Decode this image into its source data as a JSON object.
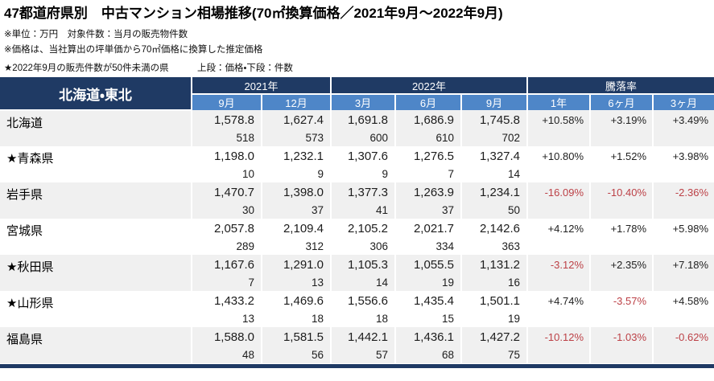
{
  "page": {
    "title": "47都道府県別　中古マンション相場推移(70㎡換算価格／2021年9月～2022年9月)",
    "notes": [
      "※単位：万円　対象件数：当月の販売物件数",
      "※価格は、当社算出の坪単価から70㎡価格に換算した推定価格"
    ],
    "note_star": "★2022年9月の販売件数が50件未満の県",
    "note_legend": "上段：価格・下段：件数"
  },
  "colors": {
    "header_navy": "#1F3A64",
    "header_blue": "#4E86C8",
    "stripe_gray": "#F0F0F0",
    "negative_red": "#BC4046"
  },
  "table": {
    "region": "北海道・東北",
    "year_groups": [
      {
        "label": "2021年",
        "span": 2
      },
      {
        "label": "2022年",
        "span": 3
      },
      {
        "label": "騰落率",
        "span": 3
      }
    ],
    "periods": [
      "9月",
      "12月",
      "3月",
      "6月",
      "9月",
      "1年",
      "6ヶ月",
      "3ヶ月"
    ],
    "rows": [
      {
        "name": "北海道",
        "prices": [
          "1,578.8",
          "1,627.4",
          "1,691.8",
          "1,686.9",
          "1,745.8"
        ],
        "counts": [
          "518",
          "573",
          "600",
          "610",
          "702"
        ],
        "rates": [
          "+10.58%",
          "+3.19%",
          "+3.49%"
        ]
      },
      {
        "name": "★青森県",
        "prices": [
          "1,198.0",
          "1,232.1",
          "1,307.6",
          "1,276.5",
          "1,327.4"
        ],
        "counts": [
          "10",
          "9",
          "9",
          "7",
          "14"
        ],
        "rates": [
          "+10.80%",
          "+1.52%",
          "+3.98%"
        ]
      },
      {
        "name": "岩手県",
        "prices": [
          "1,470.7",
          "1,398.0",
          "1,377.3",
          "1,263.9",
          "1,234.1"
        ],
        "counts": [
          "30",
          "37",
          "41",
          "37",
          "50"
        ],
        "rates": [
          "-16.09%",
          "-10.40%",
          "-2.36%"
        ]
      },
      {
        "name": "宮城県",
        "prices": [
          "2,057.8",
          "2,109.4",
          "2,105.2",
          "2,021.7",
          "2,142.6"
        ],
        "counts": [
          "289",
          "312",
          "306",
          "334",
          "363"
        ],
        "rates": [
          "+4.12%",
          "+1.78%",
          "+5.98%"
        ]
      },
      {
        "name": "★秋田県",
        "prices": [
          "1,167.6",
          "1,291.0",
          "1,105.3",
          "1,055.5",
          "1,131.2"
        ],
        "counts": [
          "7",
          "13",
          "14",
          "19",
          "16"
        ],
        "rates": [
          "-3.12%",
          "+2.35%",
          "+7.18%"
        ]
      },
      {
        "name": "★山形県",
        "prices": [
          "1,433.2",
          "1,469.6",
          "1,556.6",
          "1,435.4",
          "1,501.1"
        ],
        "counts": [
          "13",
          "18",
          "18",
          "15",
          "19"
        ],
        "rates": [
          "+4.74%",
          "-3.57%",
          "+4.58%"
        ]
      },
      {
        "name": "福島県",
        "prices": [
          "1,588.0",
          "1,581.5",
          "1,442.1",
          "1,436.1",
          "1,427.2"
        ],
        "counts": [
          "48",
          "56",
          "57",
          "68",
          "75"
        ],
        "rates": [
          "-10.12%",
          "-1.03%",
          "-0.62%"
        ]
      }
    ]
  }
}
